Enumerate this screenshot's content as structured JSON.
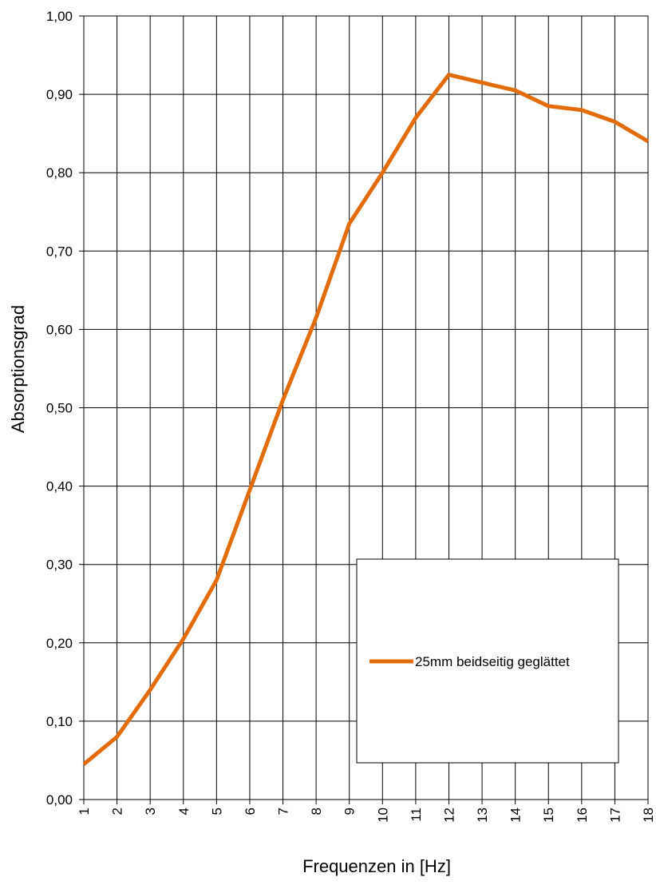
{
  "chart_data": {
    "type": "line",
    "xlabel": "Frequenzen in [Hz]",
    "ylabel": "Absorptionsgrad",
    "categories": [
      "1",
      "2",
      "3",
      "4",
      "5",
      "6",
      "7",
      "8",
      "9",
      "10",
      "11",
      "12",
      "13",
      "14",
      "15",
      "16",
      "17",
      "18"
    ],
    "ylim": [
      0,
      1
    ],
    "ytick_labels": [
      "0,00",
      "0,10",
      "0,20",
      "0,30",
      "0,40",
      "0,50",
      "0,60",
      "0,70",
      "0,80",
      "0,90",
      "1,00"
    ],
    "grid": true,
    "legend_position": "bottom-right",
    "series": [
      {
        "name": "25mm beidseitig geglättet",
        "color": "#e36c0a",
        "values": [
          0.045,
          0.08,
          0.14,
          0.205,
          0.28,
          0.395,
          0.51,
          0.615,
          0.735,
          0.8,
          0.87,
          0.925,
          0.915,
          0.905,
          0.885,
          0.88,
          0.865,
          0.84
        ]
      }
    ]
  }
}
